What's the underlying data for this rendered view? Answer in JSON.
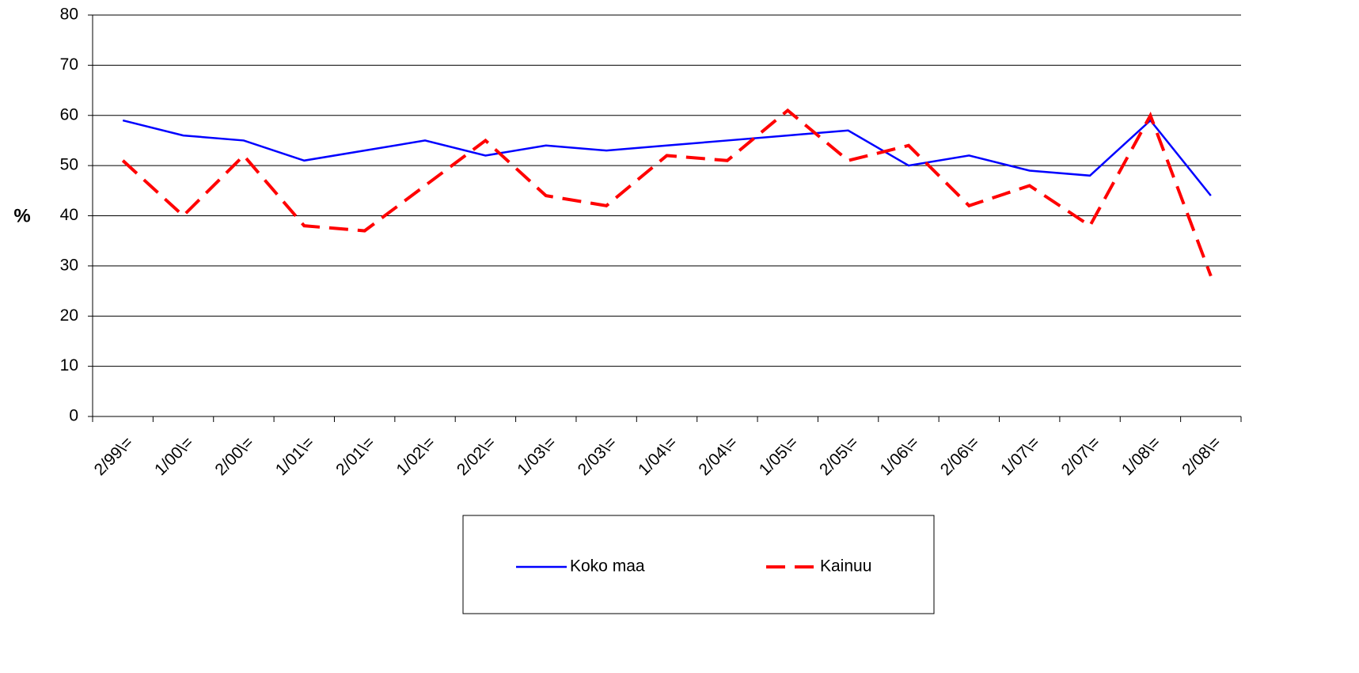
{
  "chart_data": {
    "type": "line",
    "y_label": "%",
    "categories": [
      "2/99\\=",
      "1/00\\=",
      "2/00\\=",
      "1/01\\=",
      "2/01\\=",
      "1/02\\=",
      "2/02\\=",
      "1/03\\=",
      "2/03\\=",
      "1/04\\=",
      "2/04\\=",
      "1/05\\=",
      "2/05\\=",
      "1/06\\=",
      "2/06\\=",
      "1/07\\=",
      "2/07\\=",
      "1/08\\=",
      "2/08\\="
    ],
    "series": [
      {
        "name": "Koko maa",
        "color": "#0000ff",
        "dashed": false,
        "values": [
          59,
          56,
          55,
          51,
          53,
          55,
          52,
          54,
          53,
          54,
          55,
          56,
          57,
          50,
          52,
          49,
          48,
          59,
          44
        ]
      },
      {
        "name": "Kainuu",
        "color": "#ff0000",
        "dashed": true,
        "values": [
          51,
          40,
          52,
          38,
          37,
          46,
          55,
          44,
          42,
          52,
          51,
          61,
          51,
          54,
          42,
          46,
          38,
          60,
          28
        ]
      }
    ],
    "ylim": [
      0,
      80
    ],
    "yticks": [
      0,
      10,
      20,
      30,
      40,
      50,
      60,
      70,
      80
    ],
    "grid": true
  }
}
